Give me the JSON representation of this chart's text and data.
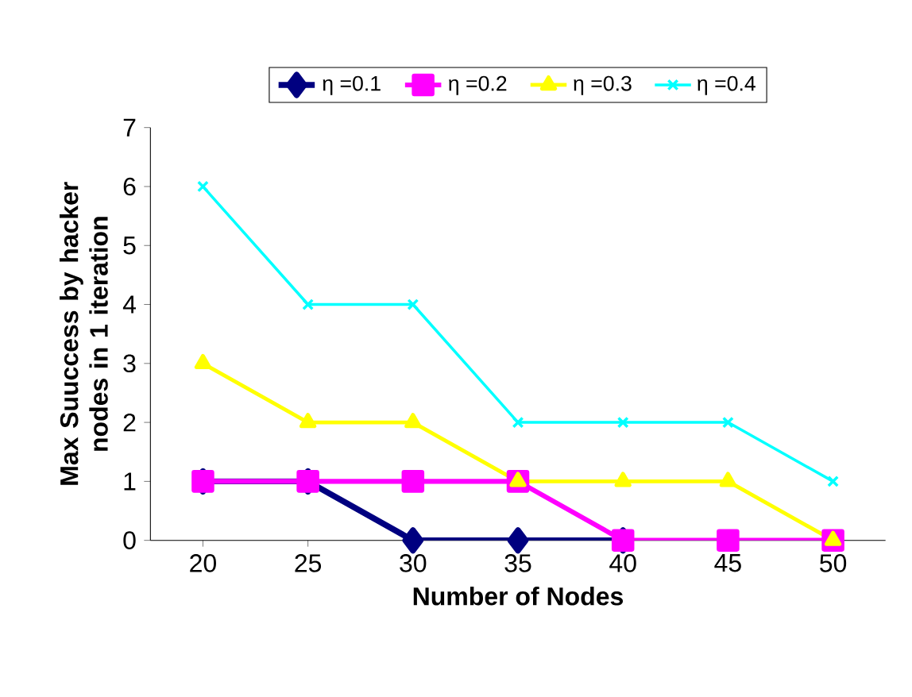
{
  "chart_data": {
    "type": "line",
    "xlabel": "Number of Nodes",
    "ylabel": "Max Suuccess by hacker nodes in 1 iteration",
    "categories": [
      "20",
      "25",
      "30",
      "35",
      "40",
      "45",
      "50"
    ],
    "series": [
      {
        "name": "η =0.1",
        "color": "#000080",
        "marker": "diamond",
        "values": [
          1,
          1,
          0,
          0,
          0,
          null,
          null
        ]
      },
      {
        "name": "η =0.2",
        "color": "#ff00ff",
        "marker": "square",
        "values": [
          1,
          1,
          1,
          1,
          0,
          0,
          0
        ]
      },
      {
        "name": "η =0.3",
        "color": "#ffff00",
        "marker": "triangle",
        "values": [
          3,
          2,
          2,
          1,
          1,
          1,
          0
        ]
      },
      {
        "name": "η =0.4",
        "color": "#00ffff",
        "marker": "cross",
        "values": [
          6,
          4,
          4,
          2,
          2,
          2,
          1
        ]
      }
    ],
    "ylim": [
      0,
      7
    ],
    "yticks": [
      0,
      1,
      2,
      3,
      4,
      5,
      6,
      7
    ],
    "grid": false,
    "legend": "top"
  }
}
